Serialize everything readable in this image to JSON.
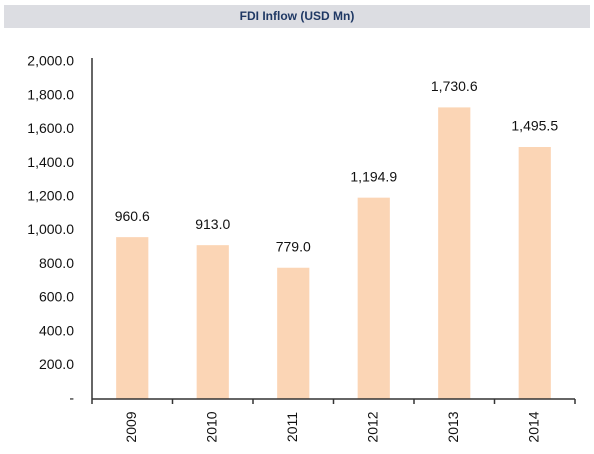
{
  "chart_data": {
    "type": "bar",
    "title": "FDI Inflow (USD Mn)",
    "categories": [
      "2009",
      "2010",
      "2011",
      "2012",
      "2013",
      "2014"
    ],
    "values": [
      960.6,
      913.0,
      779.0,
      1194.9,
      1730.6,
      1495.5
    ],
    "value_labels": [
      "960.6",
      "913.0",
      "779.0",
      "1,194.9",
      "1,730.6",
      "1,495.5"
    ],
    "color": "#fbd5b5",
    "ylim": [
      0,
      2000
    ],
    "yticks": [
      {
        "value": 0,
        "label": "-"
      },
      {
        "value": 200,
        "label": "200.0"
      },
      {
        "value": 400,
        "label": "400.0"
      },
      {
        "value": 600,
        "label": "600.0"
      },
      {
        "value": 800,
        "label": "800.0"
      },
      {
        "value": 1000,
        "label": "1,000.0"
      },
      {
        "value": 1200,
        "label": "1,200.0"
      },
      {
        "value": 1400,
        "label": "1,400.0"
      },
      {
        "value": 1600,
        "label": "1,600.0"
      },
      {
        "value": 1800,
        "label": "1,800.0"
      },
      {
        "value": 2000,
        "label": "2,000.0"
      }
    ],
    "grid": false
  }
}
